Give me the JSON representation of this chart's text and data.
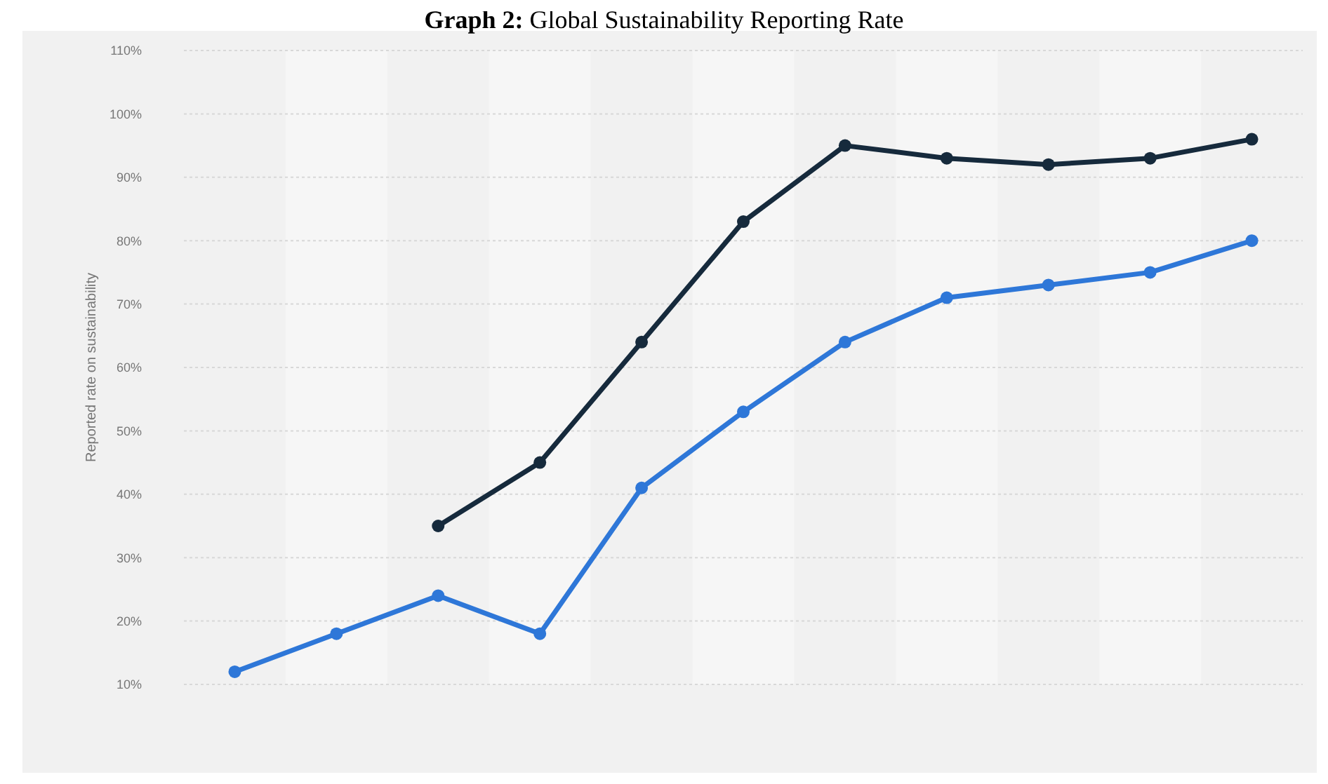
{
  "chart_data": {
    "type": "line",
    "title": "Graph 2: Global Sustainability Reporting Rate",
    "ylabel": "Reported rate on sustainability",
    "categories": [
      null,
      null,
      null,
      null,
      null,
      null,
      null,
      null,
      null,
      null,
      null
    ],
    "series": [
      {
        "color": "#2e77d8",
        "values": [
          12,
          18,
          24,
          18,
          41,
          53,
          64,
          71,
          73,
          75,
          80
        ]
      },
      {
        "color": "#162a3c",
        "values": [
          null,
          null,
          35,
          45,
          64,
          83,
          95,
          93,
          92,
          93,
          96
        ]
      }
    ],
    "ylim": [
      10,
      110
    ],
    "yticks": [
      {
        "value": 10,
        "label": "10%"
      },
      {
        "value": 20,
        "label": "20%"
      },
      {
        "value": 30,
        "label": "30%"
      },
      {
        "value": 40,
        "label": "40%"
      },
      {
        "value": 50,
        "label": "50%"
      },
      {
        "value": 60,
        "label": "60%"
      },
      {
        "value": 70,
        "label": "70%"
      },
      {
        "value": 80,
        "label": "80%"
      },
      {
        "value": 90,
        "label": "90%"
      },
      {
        "value": 100,
        "label": "100%"
      },
      {
        "value": 110,
        "label": "110%"
      }
    ],
    "grid": "y",
    "marker": "circle",
    "line_style": "solid"
  }
}
